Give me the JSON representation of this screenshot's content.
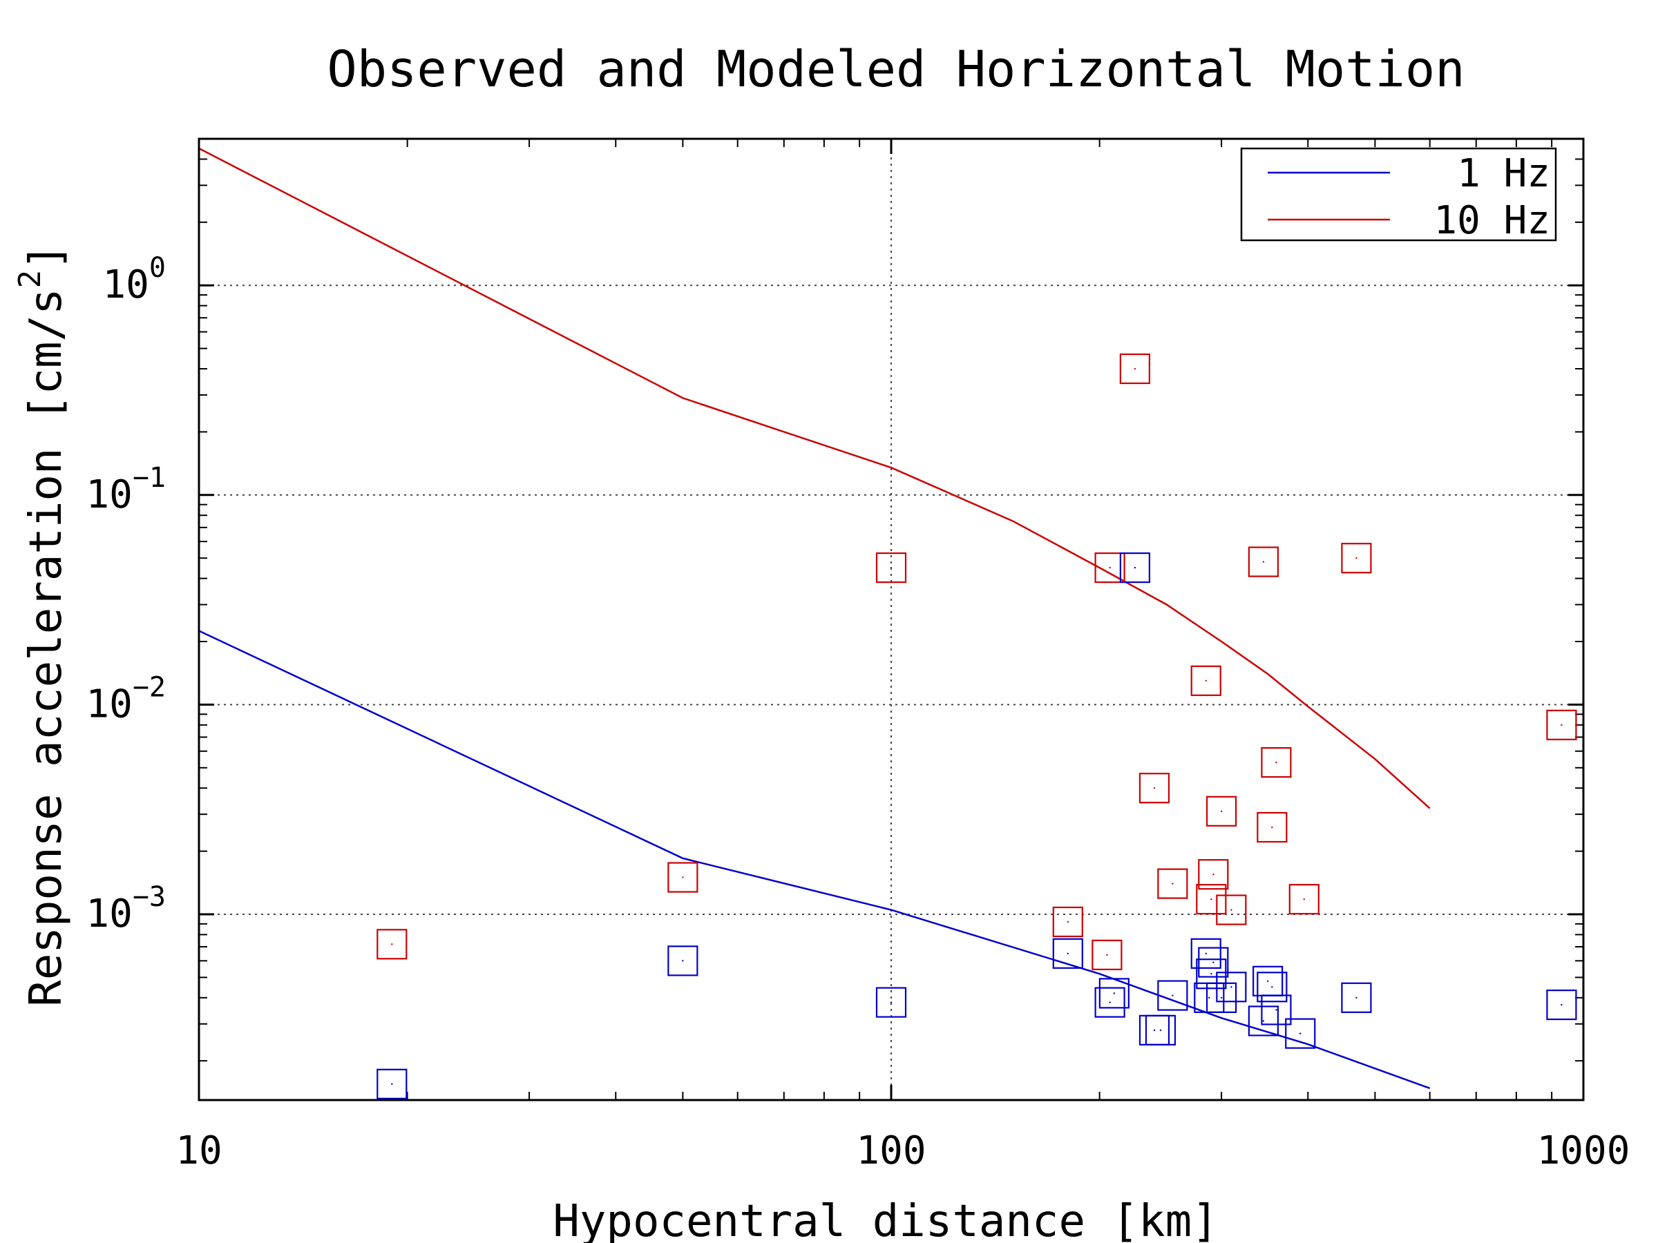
{
  "chart_data": {
    "type": "scatter",
    "title": "Observed and Modeled Horizontal Motion",
    "xlabel": "Hypocentral distance [km]",
    "ylabel": "Response acceleration [cm/s",
    "ylabel_sup": "2",
    "ylabel_end": "]",
    "xscale": "log",
    "yscale": "log",
    "xlim": [
      10,
      1000
    ],
    "ylim": [
      0.00013,
      5.0
    ],
    "grid": true,
    "legend_position": "top-right",
    "x_ticks": [
      {
        "value": 10,
        "label": "10"
      },
      {
        "value": 100,
        "label": "100"
      },
      {
        "value": 1000,
        "label": "1000"
      }
    ],
    "y_ticks": [
      {
        "value": 1,
        "base": "10",
        "exp": "0"
      },
      {
        "value": 0.1,
        "base": "10",
        "exp": "−1"
      },
      {
        "value": 0.01,
        "base": "10",
        "exp": "−2"
      },
      {
        "value": 0.001,
        "base": "10",
        "exp": "−3"
      }
    ],
    "series": [
      {
        "name": "1 Hz",
        "color": "#0000cc",
        "model": {
          "x": [
            10,
            50,
            100,
            200,
            300,
            400,
            600
          ],
          "y": [
            0.0225,
            0.00185,
            0.00105,
            0.00052,
            0.00032,
            0.00024,
            0.000148
          ]
        },
        "observed": {
          "x": [
            19,
            50,
            100,
            180,
            207,
            210,
            225,
            240,
            245,
            255,
            285,
            288,
            290,
            292,
            300,
            310,
            345,
            350,
            355,
            360,
            390,
            470,
            930
          ],
          "y": [
            0.000155,
            0.0006,
            0.00038,
            0.00065,
            0.00038,
            0.00042,
            0.045,
            0.00028,
            0.00028,
            0.00041,
            0.00065,
            0.0004,
            0.00052,
            0.00059,
            0.0004,
            0.00045,
            0.00031,
            0.00048,
            0.00045,
            0.00035,
            0.00027,
            0.0004,
            0.00037
          ]
        }
      },
      {
        "name": "10 Hz",
        "color": "#cc0000",
        "model": {
          "x": [
            10,
            50,
            100,
            150,
            200,
            250,
            300,
            350,
            400,
            500,
            600
          ],
          "y": [
            4.5,
            0.29,
            0.135,
            0.075,
            0.045,
            0.03,
            0.02,
            0.014,
            0.0098,
            0.0055,
            0.0032
          ]
        },
        "observed": {
          "x": [
            19,
            50,
            100,
            180,
            205,
            207,
            225,
            240,
            255,
            285,
            290,
            292,
            300,
            310,
            345,
            355,
            360,
            395,
            470,
            930
          ],
          "y": [
            0.00072,
            0.0015,
            0.045,
            0.00092,
            0.00064,
            0.045,
            0.4,
            0.004,
            0.0014,
            0.013,
            0.00118,
            0.00155,
            0.0031,
            0.00105,
            0.048,
            0.0026,
            0.0053,
            0.00118,
            0.05,
            0.008
          ]
        }
      }
    ]
  }
}
